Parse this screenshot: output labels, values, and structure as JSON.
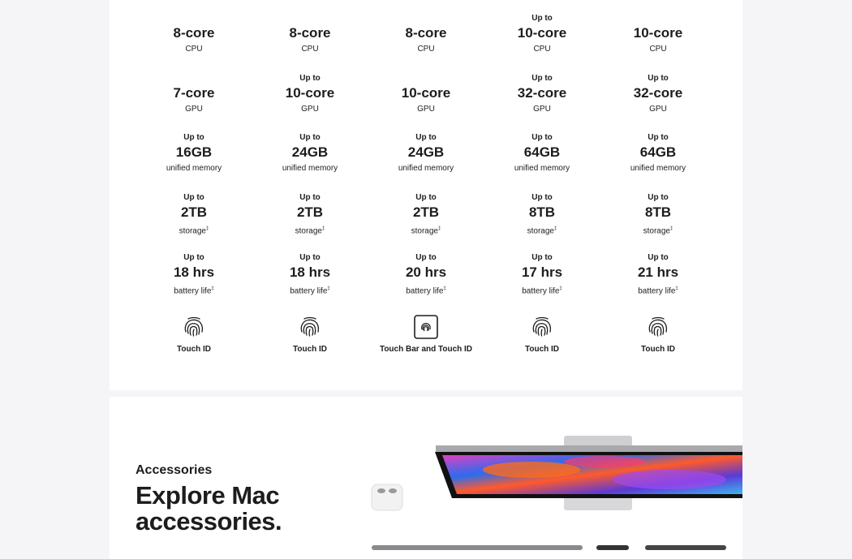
{
  "specs": {
    "columns": [
      {
        "rows": [
          {
            "upto": "",
            "value": "8-core",
            "label": "CPU"
          },
          {
            "upto": "",
            "value": "7-core",
            "label": "GPU"
          },
          {
            "upto": "Up to",
            "value": "16GB",
            "label": "unified memory"
          },
          {
            "upto": "Up to",
            "value": "2TB",
            "label": "storage",
            "sup": "‡"
          },
          {
            "upto": "Up to",
            "value": "18 hrs",
            "label": "battery life",
            "sup": "‡"
          }
        ],
        "feature": "Touch ID",
        "feature_icon": "fingerprint-icon"
      },
      {
        "rows": [
          {
            "upto": "",
            "value": "8-core",
            "label": "CPU"
          },
          {
            "upto": "Up to",
            "value": "10-core",
            "label": "GPU"
          },
          {
            "upto": "Up to",
            "value": "24GB",
            "label": "unified memory"
          },
          {
            "upto": "Up to",
            "value": "2TB",
            "label": "storage",
            "sup": "‡"
          },
          {
            "upto": "Up to",
            "value": "18 hrs",
            "label": "battery life",
            "sup": "‡"
          }
        ],
        "feature": "Touch ID",
        "feature_icon": "fingerprint-icon"
      },
      {
        "rows": [
          {
            "upto": "",
            "value": "8-core",
            "label": "CPU"
          },
          {
            "upto": "",
            "value": "10-core",
            "label": "GPU"
          },
          {
            "upto": "Up to",
            "value": "24GB",
            "label": "unified memory"
          },
          {
            "upto": "Up to",
            "value": "2TB",
            "label": "storage",
            "sup": "‡"
          },
          {
            "upto": "Up to",
            "value": "20 hrs",
            "label": "battery life",
            "sup": "‡"
          }
        ],
        "feature": "Touch Bar and Touch ID",
        "feature_icon": "touch-bar-fingerprint-icon"
      },
      {
        "rows": [
          {
            "upto": "Up to",
            "value": "10-core",
            "label": "CPU"
          },
          {
            "upto": "Up to",
            "value": "32-core",
            "label": "GPU"
          },
          {
            "upto": "Up to",
            "value": "64GB",
            "label": "unified memory"
          },
          {
            "upto": "Up to",
            "value": "8TB",
            "label": "storage",
            "sup": "‡"
          },
          {
            "upto": "Up to",
            "value": "17 hrs",
            "label": "battery life",
            "sup": "‡"
          }
        ],
        "feature": "Touch ID",
        "feature_icon": "fingerprint-icon"
      },
      {
        "rows": [
          {
            "upto": "",
            "value": "10-core",
            "label": "CPU"
          },
          {
            "upto": "Up to",
            "value": "32-core",
            "label": "GPU"
          },
          {
            "upto": "Up to",
            "value": "64GB",
            "label": "unified memory"
          },
          {
            "upto": "Up to",
            "value": "8TB",
            "label": "storage",
            "sup": "‡"
          },
          {
            "upto": "Up to",
            "value": "21 hrs",
            "label": "battery life",
            "sup": "‡"
          }
        ],
        "feature": "Touch ID",
        "feature_icon": "fingerprint-icon"
      }
    ]
  },
  "accessories": {
    "eyebrow": "Accessories",
    "title": "Explore Mac accessories."
  }
}
